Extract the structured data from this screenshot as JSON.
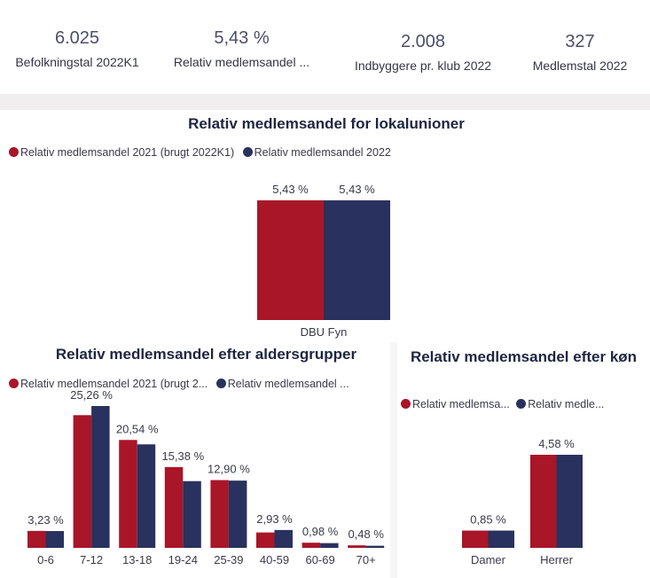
{
  "colors": {
    "series1": "#a81628",
    "series2": "#29315e"
  },
  "kpis": [
    {
      "value": "6.025",
      "label": "Befolkningstal 2022K1"
    },
    {
      "value": "5,43 %",
      "label": "Relativ medlemsandel ..."
    },
    {
      "value": "2.008",
      "label": "Indbyggere pr. klub 2022"
    },
    {
      "value": "327",
      "label": "Medlemstal 2022"
    }
  ],
  "chart_data": [
    {
      "type": "bar",
      "title": "Relativ medlemsandel for lokalunioner",
      "legend": [
        "Relativ medlemsandel 2021 (brugt 2022K1)",
        "Relativ medlemsandel 2022"
      ],
      "categories": [
        "DBU Fyn"
      ],
      "series": [
        {
          "name": "Relativ medlemsandel 2021 (brugt 2022K1)",
          "values": [
            5.43
          ],
          "labels": [
            "5,43 %"
          ]
        },
        {
          "name": "Relativ medlemsandel 2022",
          "values": [
            5.43
          ],
          "labels": [
            "5,43 %"
          ]
        }
      ],
      "ylim": [
        0,
        5.43
      ]
    },
    {
      "type": "bar",
      "title": "Relativ medlemsandel efter aldersgrupper",
      "legend": [
        "Relativ medlemsandel 2021 (brugt 2...",
        "Relativ medlemsandel ..."
      ],
      "categories": [
        "0-6",
        "7-12",
        "13-18",
        "19-24",
        "25-39",
        "40-59",
        "60-69",
        "70+"
      ],
      "series": [
        {
          "name": "Relativ medlemsandel 2021 (brugt 2...",
          "values": [
            3.23,
            25.26,
            20.54,
            15.38,
            12.9,
            2.93,
            0.98,
            0.48
          ],
          "labels": [
            "3,23 %",
            "25,26 %",
            "20,54 %",
            "15,38 %",
            "12,90 %",
            "2,93 %",
            "0,98 %",
            "0,48 %"
          ]
        },
        {
          "name": "Relativ medlemsandel ...",
          "values": [
            3.2,
            27.0,
            19.7,
            12.7,
            12.8,
            3.4,
            0.9,
            0.4
          ]
        }
      ],
      "ylim": [
        0,
        27
      ]
    },
    {
      "type": "bar",
      "title": "Relativ medlemsandel efter køn",
      "legend": [
        "Relativ medlemsa...",
        "Relativ medle..."
      ],
      "categories": [
        "Damer",
        "Herrer"
      ],
      "series": [
        {
          "name": "Relativ medlemsa...",
          "values": [
            0.85,
            4.58
          ],
          "labels": [
            "0,85 %",
            "4,58 %"
          ]
        },
        {
          "name": "Relativ medle...",
          "values": [
            0.85,
            4.58
          ]
        }
      ],
      "ylim": [
        0,
        4.58
      ]
    }
  ]
}
